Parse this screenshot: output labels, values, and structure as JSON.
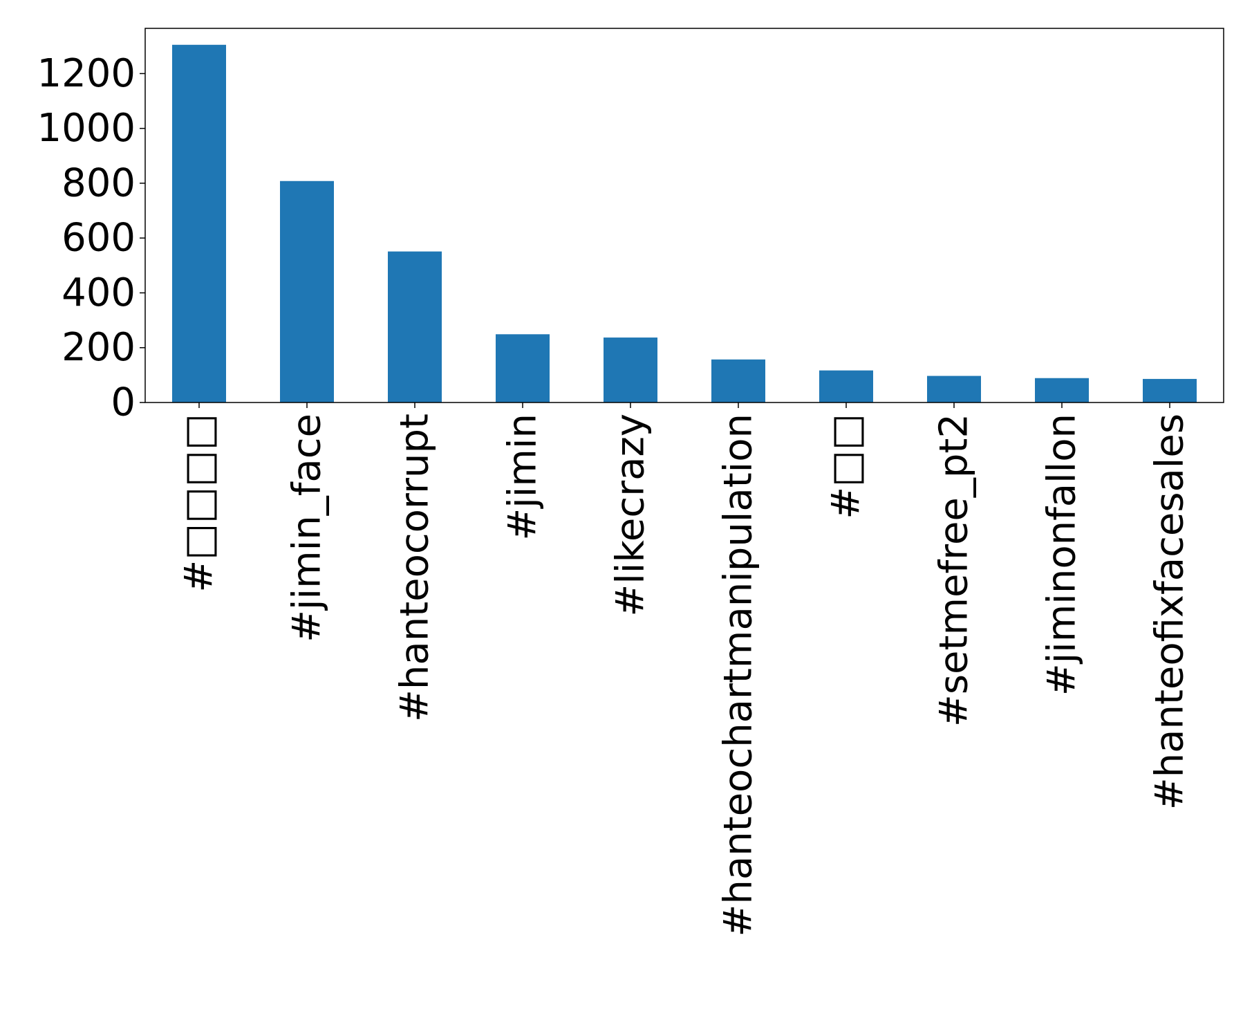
{
  "chart_data": {
    "type": "bar",
    "categories": [
      "#□□□□",
      "#jimin_face",
      "#hanteocorrupt",
      "#jimin",
      "#likecrazy",
      "#hanteochartmanipulation",
      "#□□",
      "#setmefree_pt2",
      "#jiminonfallon",
      "#hanteofixfacesales"
    ],
    "values": [
      1305,
      808,
      551,
      249,
      237,
      157,
      117,
      97,
      89,
      86
    ],
    "yticks": [
      "0",
      "200",
      "400",
      "600",
      "800",
      "1000",
      "1200"
    ],
    "ylim": [
      0,
      1365
    ],
    "title": "",
    "xlabel": "",
    "ylabel": "",
    "grid": false,
    "bar_color": "#1f77b4"
  }
}
